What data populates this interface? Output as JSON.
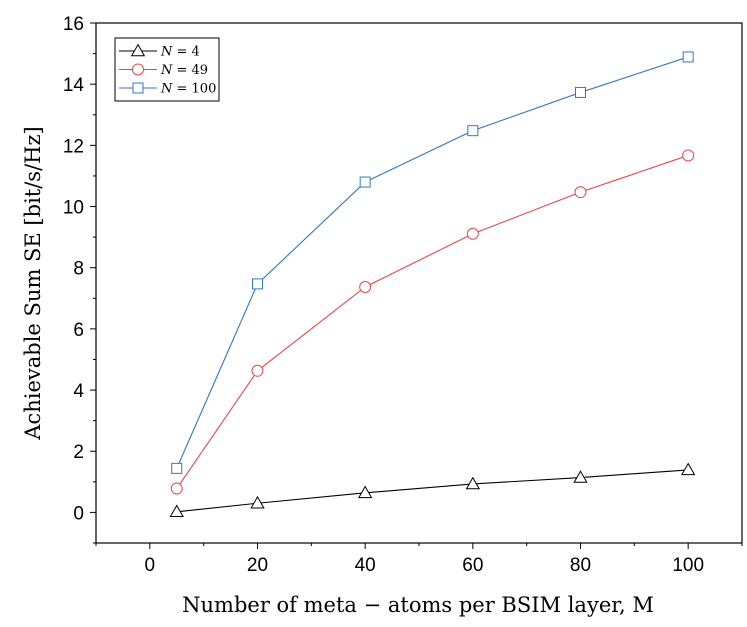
{
  "chart_data": {
    "type": "line",
    "xlabel": "Number of meta − atoms per BSIM layer, M",
    "ylabel": "Achievable Sum SE [bit/s/Hz]",
    "xlim": [
      -10,
      110
    ],
    "ylim": [
      -1,
      16
    ],
    "xticks": [
      0,
      20,
      40,
      60,
      80,
      100
    ],
    "yticks": [
      0,
      2,
      4,
      6,
      8,
      10,
      12,
      14,
      16
    ],
    "grid": false,
    "legend_position": "top-left",
    "x": [
      5,
      20,
      40,
      60,
      80,
      100
    ],
    "series": [
      {
        "name": "N = 4",
        "var": "N",
        "value": "4",
        "marker": "triangle",
        "color": "#000000",
        "values": [
          0.02,
          0.3,
          0.64,
          0.93,
          1.14,
          1.39
        ]
      },
      {
        "name": "N = 49",
        "var": "N",
        "value": "49",
        "marker": "circle",
        "color": "#e8474b",
        "values": [
          0.78,
          4.63,
          7.37,
          9.11,
          10.47,
          11.67
        ]
      },
      {
        "name": "N = 100",
        "var": "N",
        "value": "100",
        "marker": "square",
        "color": "#2f77c8",
        "values": [
          1.44,
          7.47,
          10.8,
          12.48,
          13.73,
          14.89
        ]
      }
    ]
  }
}
